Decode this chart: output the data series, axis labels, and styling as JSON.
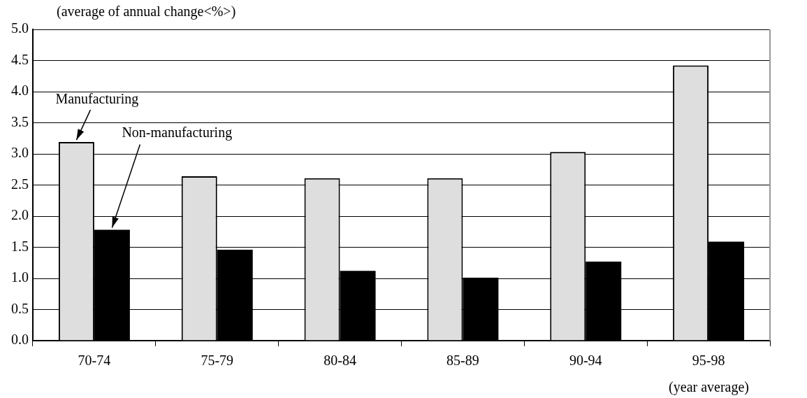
{
  "chart_data": {
    "type": "bar",
    "ylabel": "(average of annual change<%>)",
    "xlabel": "(year average)",
    "categories": [
      "70-74",
      "75-79",
      "80-84",
      "85-89",
      "90-94",
      "95-98"
    ],
    "series": [
      {
        "name": "Manufacturing",
        "color": "#dedede",
        "values": [
          3.19,
          2.64,
          2.61,
          2.61,
          3.03,
          4.42
        ]
      },
      {
        "name": "Non-manufacturing",
        "color": "#000000",
        "values": [
          1.78,
          1.46,
          1.12,
          1.01,
          1.27,
          1.59
        ]
      }
    ],
    "ylim": [
      0,
      5
    ],
    "yticks": [
      {
        "value": 0,
        "label": "0.0"
      },
      {
        "value": 0.5,
        "label": "0.5"
      },
      {
        "value": 1,
        "label": "1.0"
      },
      {
        "value": 1.5,
        "label": "1.5"
      },
      {
        "value": 2,
        "label": "2.0"
      },
      {
        "value": 2.5,
        "label": "2.5"
      },
      {
        "value": 3,
        "label": "3.0"
      },
      {
        "value": 3.5,
        "label": "3.5"
      },
      {
        "value": 4,
        "label": "4.0"
      },
      {
        "value": 4.5,
        "label": "4.5"
      },
      {
        "value": 5,
        "label": "5.0"
      }
    ],
    "grid": "y",
    "legend": false
  }
}
